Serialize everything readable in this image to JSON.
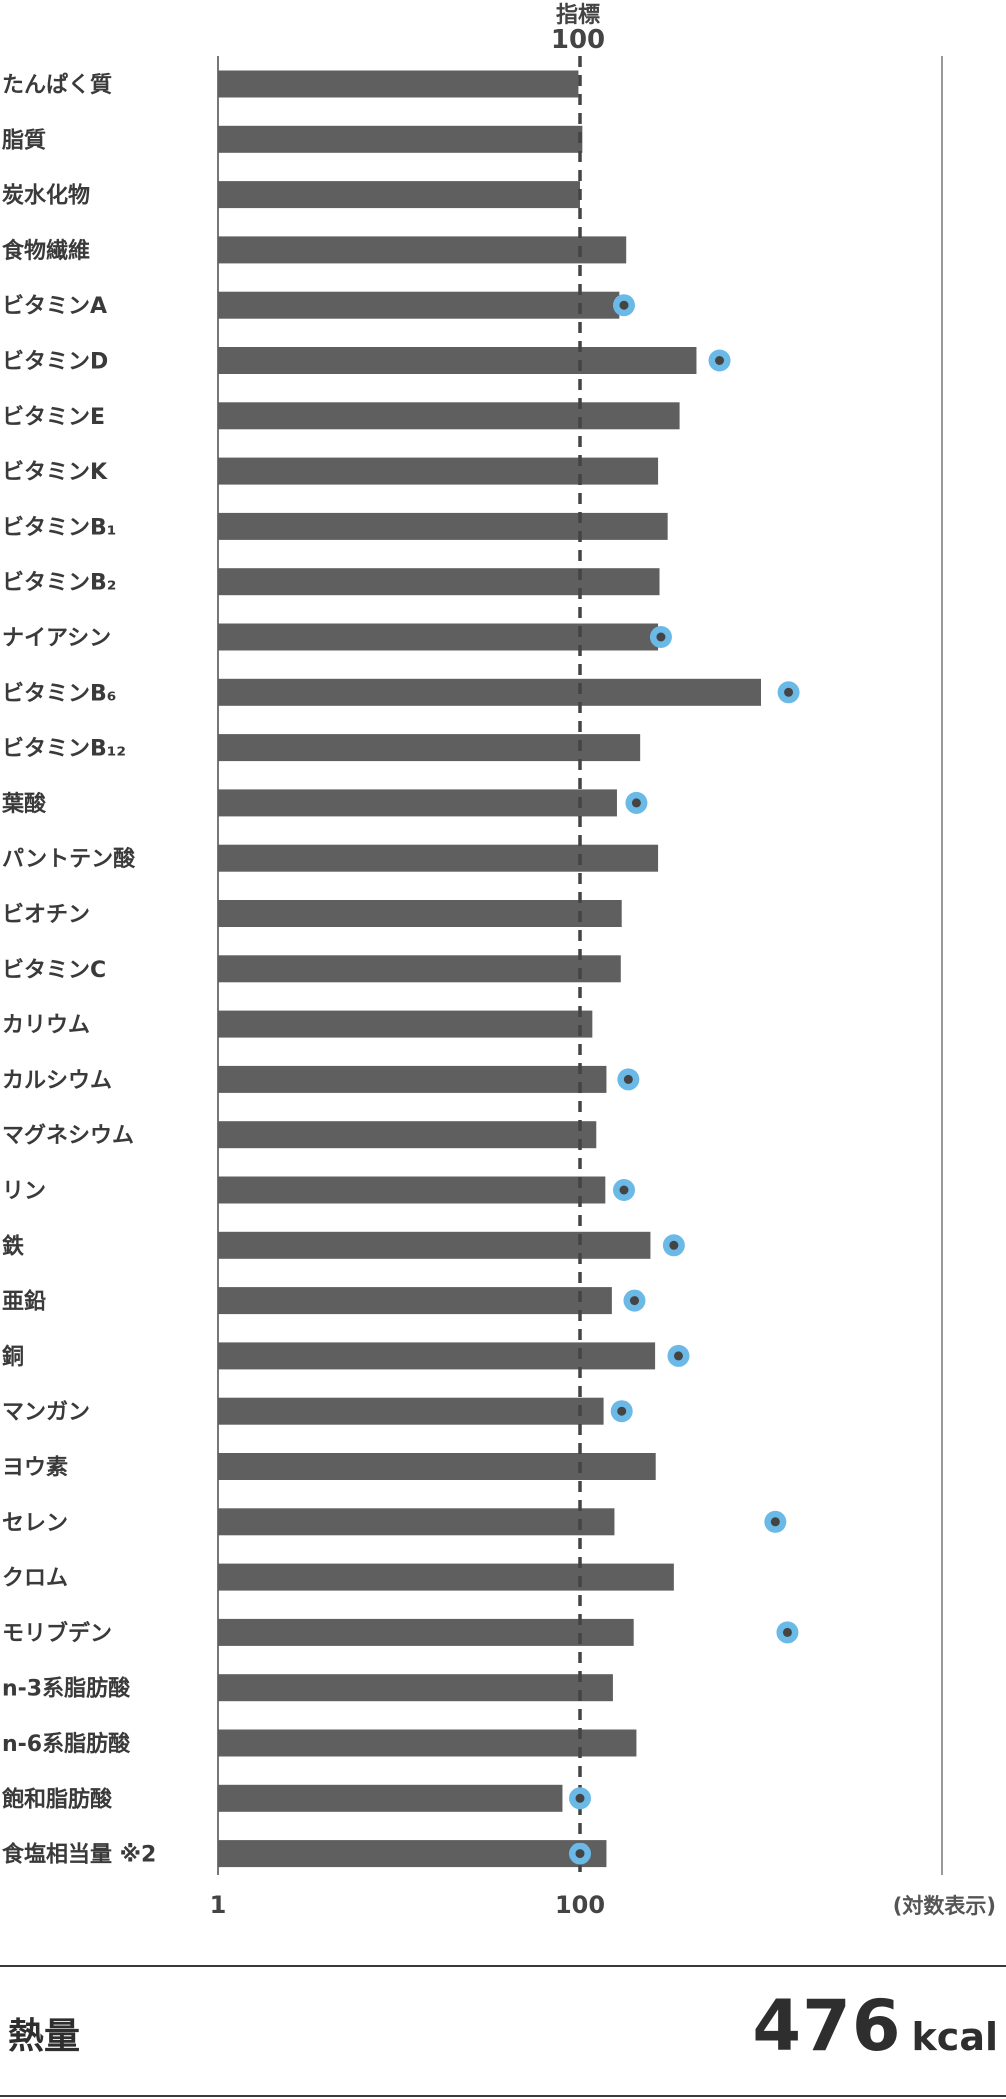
{
  "chart_data": {
    "type": "bar",
    "orientation": "horizontal",
    "x_scale": "log",
    "xlim": [
      1,
      10000
    ],
    "x_ticks": [
      {
        "value": 1,
        "label": "1"
      },
      {
        "value": 100,
        "label": "100"
      }
    ],
    "scale_note": "(対数表示)",
    "reference_line": {
      "title": "指標",
      "label": "100",
      "value": 100
    },
    "colors": {
      "bar": "#5f5f5f",
      "marker": "#6bb9e6",
      "marker_dot": "#444444",
      "axis": "#777777",
      "reference": "#444444"
    },
    "categories": [
      "たんぱく質",
      "脂質",
      "炭水化物",
      "食物繊維",
      "ビタミンA",
      "ビタミンD",
      "ビタミンE",
      "ビタミンK",
      "ビタミンB₁",
      "ビタミンB₂",
      "ナイアシン",
      "ビタミンB₆",
      "ビタミンB₁₂",
      "葉酸",
      "パントテン酸",
      "ビオチン",
      "ビタミンC",
      "カリウム",
      "カルシウム",
      "マグネシウム",
      "リン",
      "鉄",
      "亜鉛",
      "銅",
      "マンガン",
      "ヨウ素",
      "セレン",
      "クロム",
      "モリブデン",
      "n-3系脂肪酸",
      "n-6系脂肪酸",
      "飽和脂肪酸",
      "食塩相当量 ※2"
    ],
    "values": [
      98,
      103,
      100,
      180,
      165,
      440,
      355,
      270,
      305,
      275,
      270,
      1000,
      215,
      160,
      270,
      170,
      168,
      117,
      140,
      123,
      138,
      245,
      150,
      260,
      135,
      262,
      155,
      330,
      198,
      152,
      205,
      80,
      140
    ],
    "markers": [
      null,
      null,
      null,
      null,
      175,
      590,
      null,
      null,
      null,
      null,
      280,
      1420,
      null,
      205,
      null,
      null,
      null,
      null,
      185,
      null,
      175,
      330,
      200,
      350,
      170,
      null,
      1200,
      null,
      1400,
      null,
      null,
      100,
      100
    ]
  },
  "footer": {
    "energy_label": "熱量",
    "energy_value": "476",
    "energy_unit": "kcal"
  }
}
